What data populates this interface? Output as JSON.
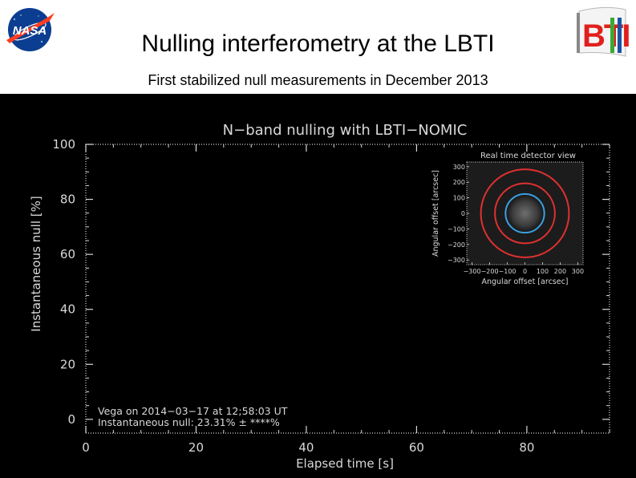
{
  "header": {
    "title": "Nulling interferometry at the LBTI",
    "subtitle": "First stabilized null measurements in December 2013",
    "nasa_logo_text": "NASA",
    "lbti_logo_text": "BTI"
  },
  "chart_data": {
    "type": "scatter",
    "title": "N−band nulling with LBTI−NOMIC",
    "xlabel": "Elapsed time [s]",
    "ylabel": "Instantaneous null [%]",
    "xlim": [
      0,
      95
    ],
    "ylim": [
      -5,
      100
    ],
    "x_ticks": [
      0,
      20,
      40,
      60,
      80
    ],
    "y_ticks": [
      0,
      20,
      40,
      60,
      80,
      100
    ],
    "series": [],
    "annotations": [
      "Vega on 2014−03−17 at 12;58:03 UT",
      "Instantaneous null: 23.31% ± ****%"
    ],
    "inset": {
      "title": "Real time detector view",
      "xlabel": "Angular offset [arcsec]",
      "ylabel": "Angular offset [arcsec]",
      "x_ticks": [
        -300,
        -200,
        -100,
        0,
        100,
        200,
        300
      ],
      "y_ticks": [
        300,
        200,
        100,
        0,
        -100,
        -200,
        -300
      ],
      "x_tick_labels": [
        "−300",
        "−200",
        "−100",
        "0",
        "100",
        "200",
        "300"
      ],
      "y_tick_labels": [
        "300",
        "200",
        "100",
        "0",
        "−100",
        "−200",
        "−300"
      ],
      "range": [
        -330,
        330
      ],
      "circles": [
        {
          "radius": 110,
          "color": "#3aa0e0"
        },
        {
          "radius": 170,
          "color": "#e03030"
        },
        {
          "radius": 250,
          "color": "#e03030"
        }
      ]
    }
  },
  "colors": {
    "plot_background": "#000000",
    "axis": "#d8d8d8",
    "inset_blue": "#3aa0e0",
    "inset_red": "#e03030",
    "nasa_blue": "#0b3d91",
    "nasa_red": "#fc3d21",
    "lbti_red": "#e0201c",
    "lbti_green": "#3aa935",
    "lbti_blue": "#1a52a6"
  }
}
